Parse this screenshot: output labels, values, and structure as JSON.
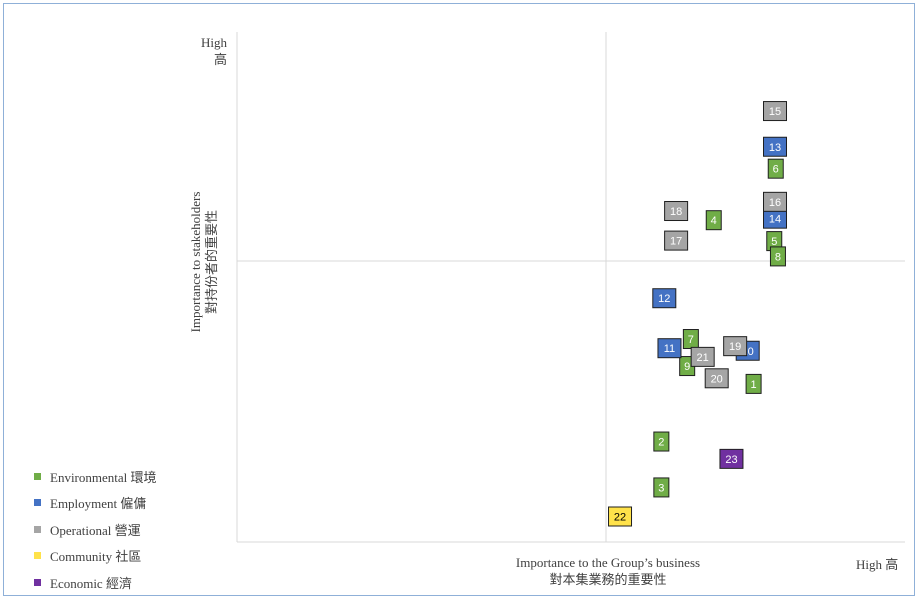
{
  "chart_data": {
    "type": "scatter",
    "y_high_label": "High",
    "y_high_label_zh": "高",
    "ylabel": "Importance to stakeholders",
    "ylabel_zh": "對持份者的重要性",
    "xlabel": "Importance to the Group’s business",
    "xlabel_zh": "對本集業務的重要性",
    "x_high_label": "High 高",
    "categories": [
      {
        "key": "env",
        "name": "Environmental 環境",
        "color": "#70ad47"
      },
      {
        "key": "emp",
        "name": "Employment 僱傭",
        "color": "#4472c4"
      },
      {
        "key": "ops",
        "name": "Operational 營運",
        "color": "#a5a5a5"
      },
      {
        "key": "com",
        "name": "Community 社區",
        "color": "#ffe24a"
      },
      {
        "key": "eco",
        "name": "Economic 經濟",
        "color": "#7030a0"
      }
    ],
    "points": [
      {
        "label": "1",
        "category": "env",
        "x": 7.0,
        "y": 3.1
      },
      {
        "label": "2",
        "category": "env",
        "x": 5.75,
        "y": 1.97
      },
      {
        "label": "3",
        "category": "env",
        "x": 5.75,
        "y": 1.07
      },
      {
        "label": "4",
        "category": "env",
        "x": 6.46,
        "y": 6.31
      },
      {
        "label": "5",
        "category": "env",
        "x": 7.28,
        "y": 5.9
      },
      {
        "label": "6",
        "category": "env",
        "x": 7.3,
        "y": 7.32
      },
      {
        "label": "7",
        "category": "env",
        "x": 6.15,
        "y": 3.98
      },
      {
        "label": "8",
        "category": "env",
        "x": 7.33,
        "y": 5.6
      },
      {
        "label": "9",
        "category": "env",
        "x": 6.1,
        "y": 3.45
      },
      {
        "label": "10",
        "category": "emp",
        "x": 6.92,
        "y": 3.75
      },
      {
        "label": "11",
        "category": "emp",
        "x": 5.86,
        "y": 3.8
      },
      {
        "label": "12",
        "category": "emp",
        "x": 5.79,
        "y": 4.78
      },
      {
        "label": "13",
        "category": "emp",
        "x": 7.29,
        "y": 7.75
      },
      {
        "label": "14",
        "category": "emp",
        "x": 7.29,
        "y": 6.34
      },
      {
        "label": "15",
        "category": "ops",
        "x": 7.29,
        "y": 8.45
      },
      {
        "label": "16",
        "category": "ops",
        "x": 7.29,
        "y": 6.67
      },
      {
        "label": "17",
        "category": "ops",
        "x": 5.95,
        "y": 5.91
      },
      {
        "label": "18",
        "category": "ops",
        "x": 5.95,
        "y": 6.49
      },
      {
        "label": "19",
        "category": "ops",
        "x": 6.75,
        "y": 3.84
      },
      {
        "label": "20",
        "category": "ops",
        "x": 6.5,
        "y": 3.21
      },
      {
        "label": "21",
        "category": "ops",
        "x": 6.31,
        "y": 3.63
      },
      {
        "label": "22",
        "category": "com",
        "x": 5.19,
        "y": 0.5
      },
      {
        "label": "23",
        "category": "eco",
        "x": 6.7,
        "y": 1.63
      }
    ]
  }
}
